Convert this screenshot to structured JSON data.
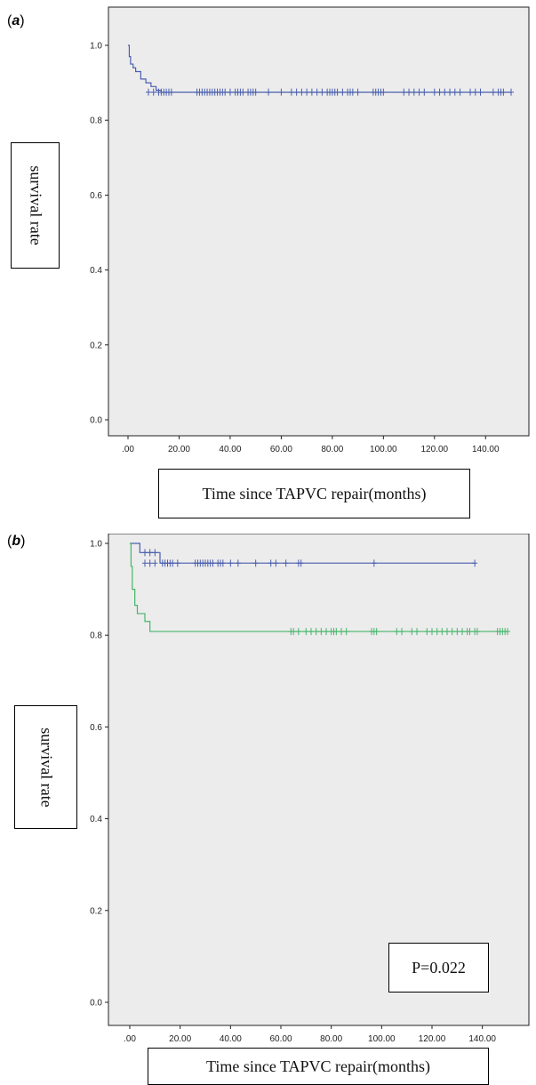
{
  "panels": {
    "a": {
      "label": "a",
      "ylabel": "survival rate",
      "xlabel": "Time since TAPVC repair(months)"
    },
    "b": {
      "label": "b",
      "ylabel": "survival rate",
      "xlabel": "Time since TAPVC repair(months)",
      "p_value": "P=0.022"
    }
  },
  "chart_data": [
    {
      "id": "a",
      "type": "line",
      "title": "",
      "xlabel": "Time since TAPVC repair(months)",
      "ylabel": "survival rate",
      "xlim": [
        0,
        150
      ],
      "ylim": [
        0,
        1.0
      ],
      "x_ticks": [
        ".00",
        "20.00",
        "40.00",
        "60.00",
        "80.00",
        "100.00",
        "120.00",
        "140.00"
      ],
      "y_ticks": [
        "0.0",
        "0.2",
        "0.4",
        "0.6",
        "0.8",
        "1.0"
      ],
      "background": "#ececec",
      "series": [
        {
          "color": "#4a5fae",
          "steps": [
            [
              0,
              1.0
            ],
            [
              0.5,
              0.97
            ],
            [
              1,
              0.95
            ],
            [
              2,
              0.94
            ],
            [
              3,
              0.93
            ],
            [
              5,
              0.91
            ],
            [
              7,
              0.9
            ],
            [
              9,
              0.89
            ],
            [
              11,
              0.88
            ],
            [
              13,
              0.875
            ],
            [
              150,
              0.875
            ]
          ],
          "censored_y": 0.875,
          "censored_x": [
            8,
            10,
            12,
            13,
            14,
            15,
            16,
            17,
            27,
            28,
            29,
            30,
            31,
            32,
            33,
            34,
            35,
            36,
            37,
            38,
            40,
            42,
            43,
            44,
            45,
            47,
            48,
            49,
            50,
            55,
            60,
            64,
            66,
            68,
            70,
            72,
            74,
            76,
            78,
            79,
            80,
            81,
            82,
            84,
            86,
            87,
            88,
            90,
            96,
            97,
            98,
            99,
            100,
            108,
            110,
            112,
            114,
            116,
            120,
            122,
            124,
            126,
            128,
            130,
            134,
            136,
            138,
            143,
            145,
            146,
            147,
            150
          ]
        }
      ]
    },
    {
      "id": "b",
      "type": "line",
      "title": "",
      "xlabel": "Time since TAPVC repair(months)",
      "ylabel": "survival rate",
      "xlim": [
        0,
        150
      ],
      "ylim": [
        0,
        1.0
      ],
      "x_ticks": [
        ".00",
        "20.00",
        "40.00",
        "60.00",
        "80.00",
        "100.00",
        "120.00",
        "140.00"
      ],
      "y_ticks": [
        "0.0",
        "0.2",
        "0.4",
        "0.6",
        "0.8",
        "1.0"
      ],
      "background": "#ececec",
      "series": [
        {
          "color": "#4a5fae",
          "steps": [
            [
              0,
              1.0
            ],
            [
              4,
              0.98
            ],
            [
              12,
              0.957
            ],
            [
              137,
              0.957
            ]
          ],
          "censored_y": 0.957,
          "censored_x": [
            6,
            8,
            10,
            13,
            14,
            15,
            16,
            17,
            19,
            26,
            27,
            28,
            29,
            30,
            31,
            32,
            33,
            35,
            36,
            37,
            40,
            43,
            50,
            56,
            58,
            62,
            67,
            68,
            97,
            137
          ],
          "extra_censored": [
            [
              6,
              0.98
            ],
            [
              8,
              0.98
            ],
            [
              10,
              0.98
            ]
          ]
        },
        {
          "color": "#45b56a",
          "steps": [
            [
              0,
              1.0
            ],
            [
              0.5,
              0.95
            ],
            [
              1,
              0.9
            ],
            [
              2,
              0.865
            ],
            [
              3,
              0.847
            ],
            [
              6,
              0.83
            ],
            [
              8,
              0.808
            ],
            [
              150,
              0.808
            ]
          ],
          "censored_y": 0.808,
          "censored_x": [
            64,
            65,
            67,
            70,
            72,
            74,
            76,
            78,
            80,
            81,
            82,
            84,
            86,
            96,
            97,
            98,
            106,
            108,
            112,
            114,
            118,
            120,
            122,
            124,
            126,
            128,
            130,
            132,
            134,
            135,
            137,
            138,
            146,
            147,
            148,
            149,
            150
          ]
        }
      ]
    }
  ]
}
